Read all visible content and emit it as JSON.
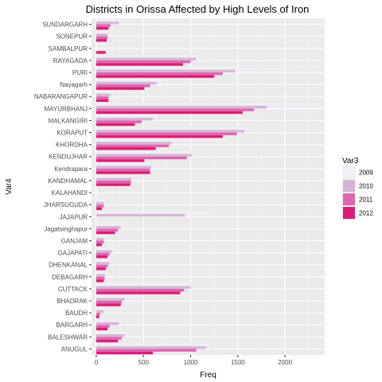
{
  "chart_data": {
    "type": "bar",
    "orientation": "horizontal",
    "title": "Districts in Orissa Affected by High Levels of Iron",
    "xlabel": "Freq",
    "ylabel": "Var4",
    "xlim": [
      -50,
      2420
    ],
    "xticks": [
      0,
      500,
      1000,
      1500,
      2000
    ],
    "xtick_labels": [
      "0",
      "500",
      "1000",
      "1500",
      "2000"
    ],
    "grid": true,
    "legend": {
      "title": "Var3",
      "position": "right"
    },
    "categories": [
      "ANUGUL",
      "BALESHWAR",
      "BARGARH",
      "BAUDH",
      "BHADRAK",
      "CUTTACK",
      "DEBAGARH",
      "DHENKANAL",
      "GAJAPATI",
      "GANJAM",
      "Jagatsinghapur",
      "JAJAPUR",
      "JHARSUGUDA",
      "KALAHANDI",
      "KANDHAMAL",
      "Kendrapara",
      "KENDUJHAR",
      "KHORDHA",
      "KORAPUT",
      "MALKANGIRI",
      "MAYURBHANJ",
      "NABARANGAPUR",
      "Nayagarh",
      "PURI",
      "RAYAGADA",
      "SAMBALPUR",
      "SONEPUR",
      "SUNDARGARH"
    ],
    "series": [
      {
        "name": "2009",
        "color": "#f1eef6",
        "values": [
          1200,
          320,
          270,
          80,
          480,
          1020,
          130,
          160,
          200,
          130,
          300,
          1200,
          100,
          0,
          400,
          600,
          1050,
          1400,
          1600,
          650,
          2350,
          170,
          700,
          2100,
          1100,
          110,
          140,
          270
        ]
      },
      {
        "name": "2010",
        "color": "#d7b5d8",
        "values": [
          1160,
          300,
          240,
          80,
          300,
          1000,
          90,
          140,
          170,
          80,
          260,
          940,
          80,
          0,
          370,
          580,
          1010,
          800,
          1570,
          600,
          1810,
          150,
          640,
          1470,
          1060,
          0,
          120,
          240
        ]
      },
      {
        "name": "2011",
        "color": "#df65b0",
        "values": [
          1060,
          270,
          140,
          40,
          270,
          930,
          90,
          120,
          140,
          80,
          230,
          0,
          80,
          0,
          370,
          570,
          960,
          770,
          1490,
          480,
          1670,
          130,
          570,
          1340,
          1000,
          0,
          120,
          150
        ]
      },
      {
        "name": "2012",
        "color": "#dd1c77",
        "values": [
          600,
          230,
          120,
          30,
          260,
          890,
          80,
          100,
          120,
          60,
          200,
          0,
          60,
          0,
          360,
          570,
          510,
          630,
          1340,
          410,
          1550,
          130,
          510,
          1250,
          920,
          100,
          110,
          130
        ]
      }
    ]
  }
}
